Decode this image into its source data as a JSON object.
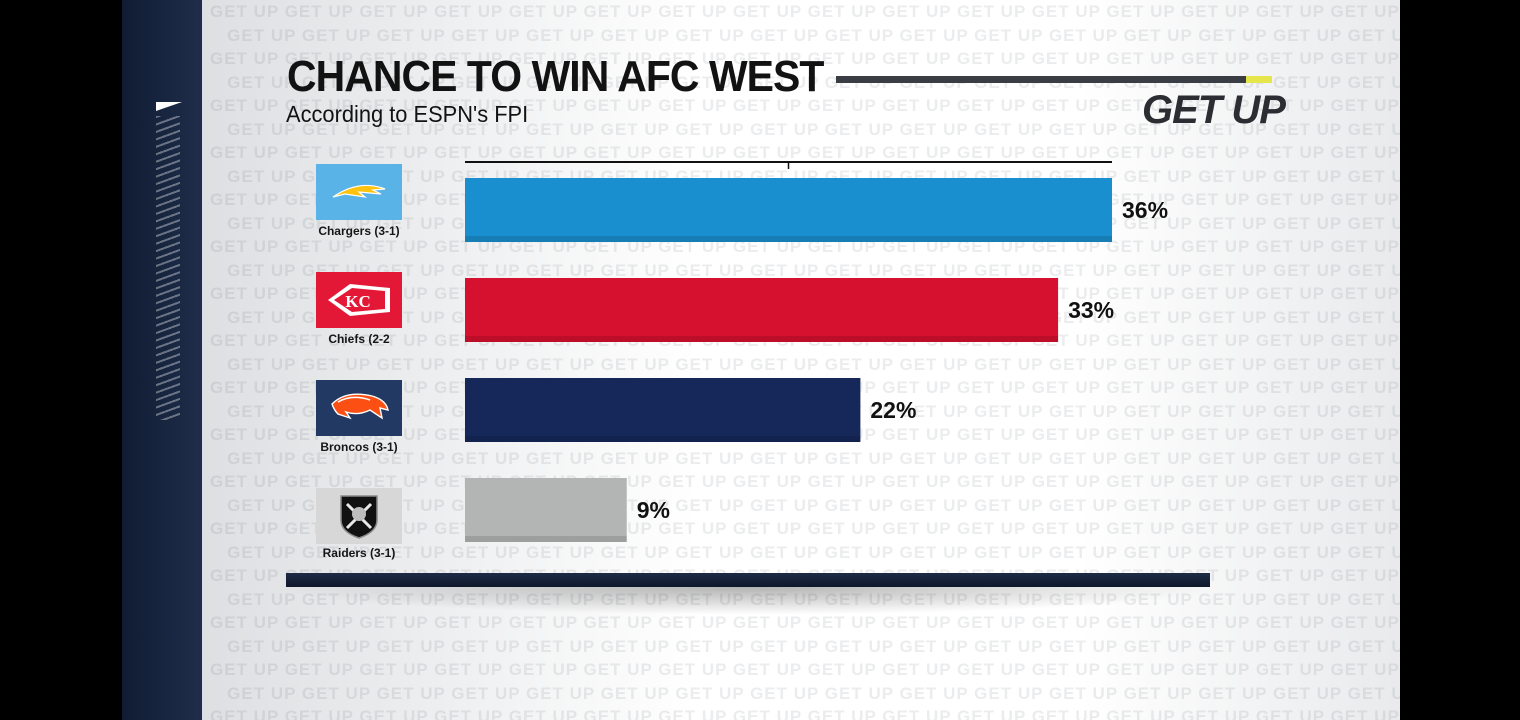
{
  "title": "CHANCE TO WIN AFC WEST",
  "subtitle": "According to ESPN's FPI",
  "brand": "GET UP",
  "watermark_word": "GET UP",
  "colors": {
    "frame_dark": "#16223b",
    "title_rule": "#3a3d44",
    "title_rule_accent": "#e4e64c"
  },
  "teams": [
    {
      "label": "Chargers (3-1)",
      "logo": "chargers-bolt-logo",
      "logo_bg": "#5ab3e6"
    },
    {
      "label": "Chiefs (2-2",
      "logo": "chiefs-arrowhead-logo",
      "logo_bg": "#e31837"
    },
    {
      "label": "Broncos (3-1)",
      "logo": "broncos-horse-logo",
      "logo_bg": "#223a63"
    },
    {
      "label": "Raiders (3-1)",
      "logo": "raiders-shield-logo",
      "logo_bg": "#d7d7d7"
    }
  ],
  "chart_data": {
    "type": "bar",
    "orientation": "horizontal",
    "title": "CHANCE TO WIN AFC WEST",
    "subtitle": "According to ESPN's FPI",
    "categories": [
      "Chargers (3-1)",
      "Chiefs (2-2",
      "Broncos (3-1)",
      "Raiders (3-1)"
    ],
    "values": [
      36,
      33,
      22,
      9
    ],
    "value_labels": [
      "36%",
      "33%",
      "22%",
      "9%"
    ],
    "colors": [
      "#1a8fcf",
      "#d6102f",
      "#16285a",
      "#b3b5b5"
    ],
    "xlim": [
      0,
      36
    ],
    "grid": false,
    "legend": "none"
  }
}
